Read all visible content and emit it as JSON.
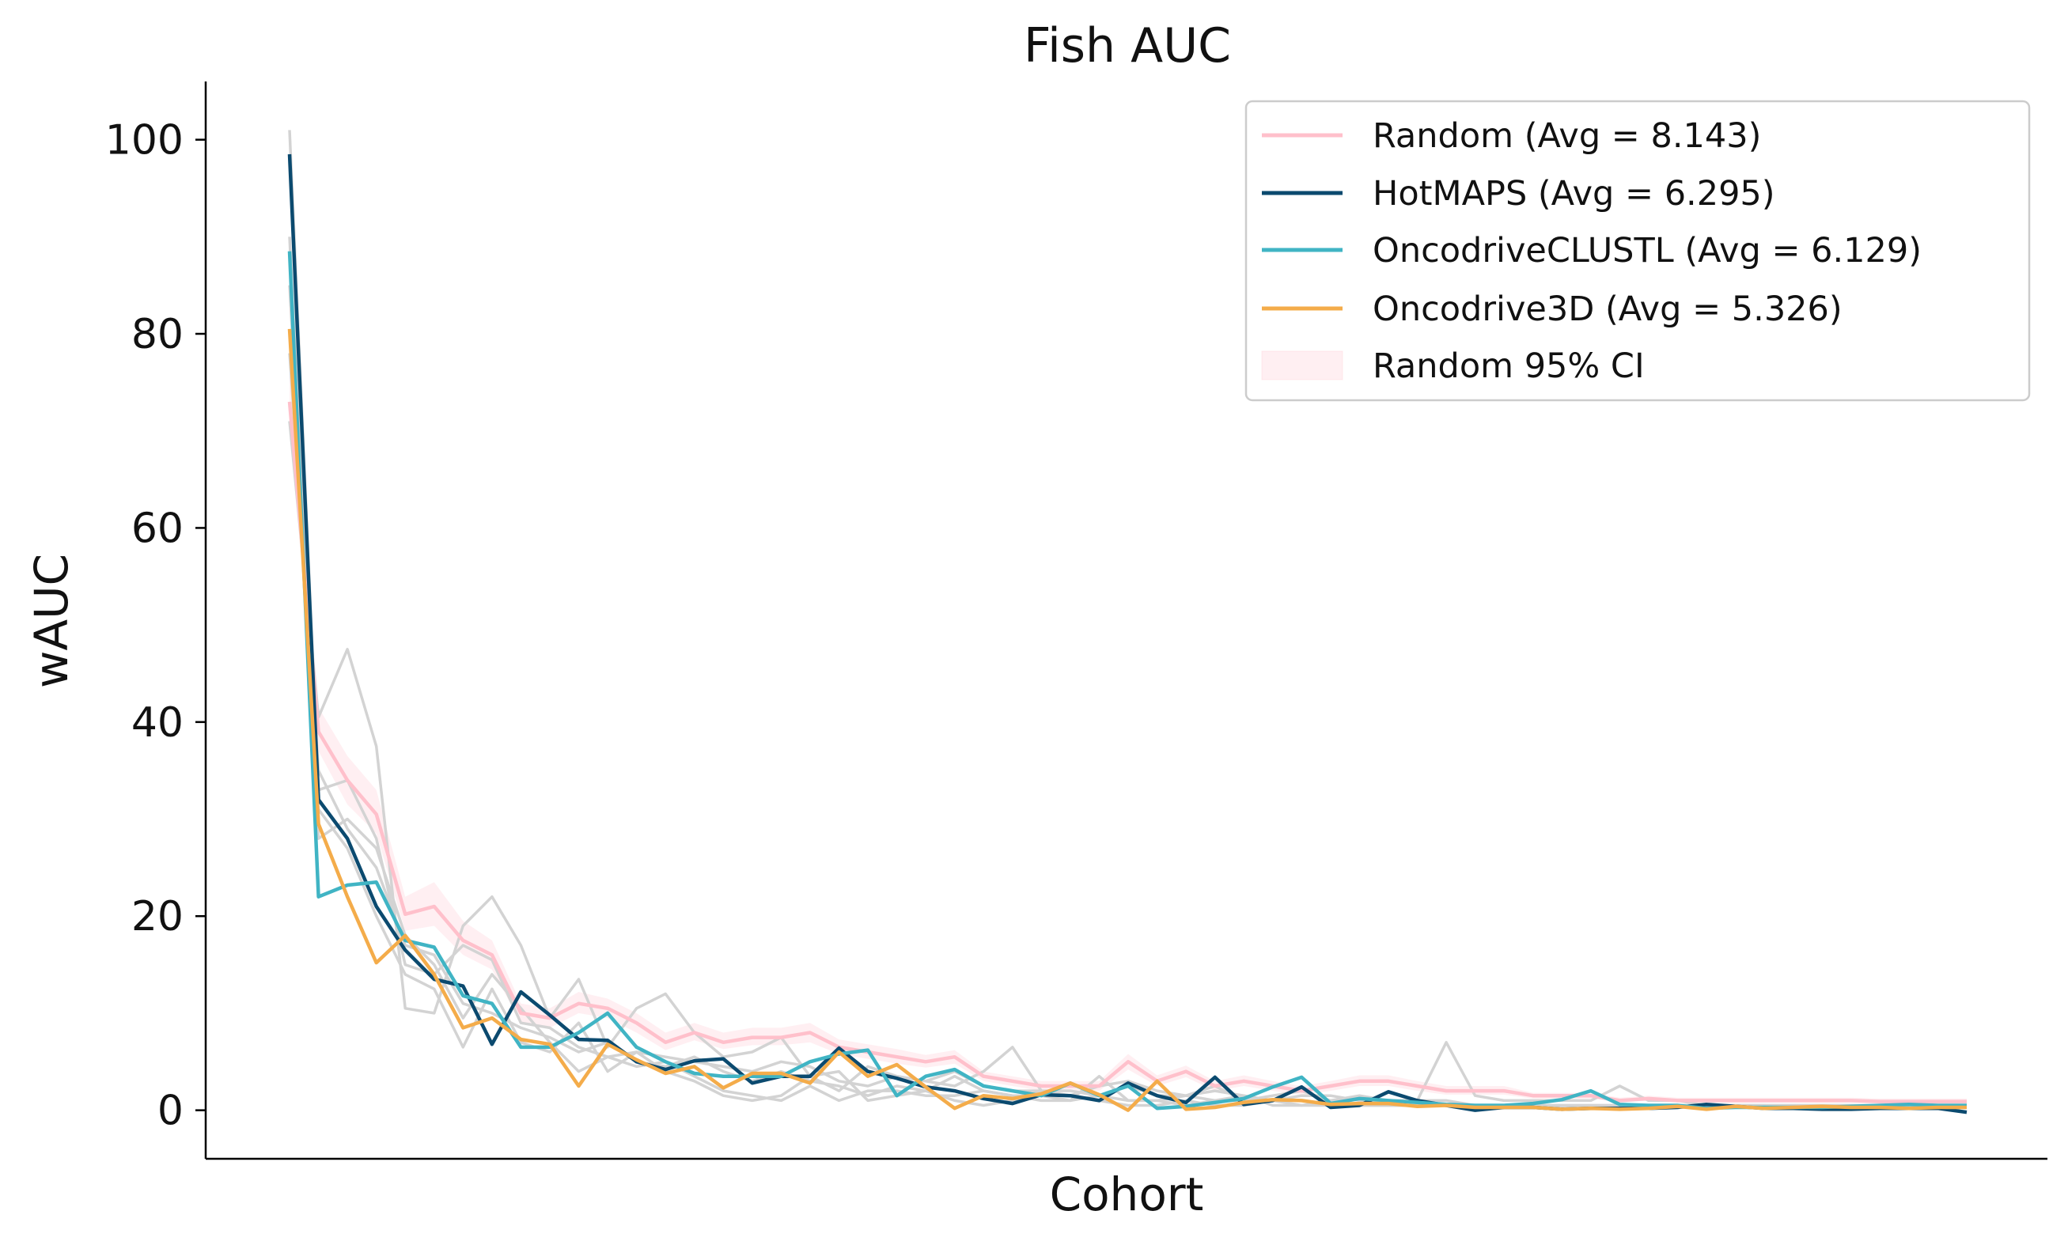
{
  "chart_data": {
    "type": "line",
    "title": "Fish AUC",
    "xlabel": "Cohort",
    "ylabel": "wAUC",
    "ylim": [
      -5,
      106
    ],
    "yticks": [
      0,
      20,
      40,
      60,
      80,
      100
    ],
    "grid": false,
    "legend_position": "top-right",
    "n_cohorts": 59,
    "series": [
      {
        "name": "Random (Avg = 8.143)",
        "color": "#ffc0cb",
        "values": [
          73.0,
          39.0,
          34.0,
          30.5,
          20.2,
          21.0,
          17.5,
          16.0,
          10.0,
          9.5,
          11.0,
          10.5,
          9.0,
          7.0,
          8.0,
          7.0,
          7.5,
          7.5,
          8.0,
          6.5,
          6.0,
          5.5,
          5.0,
          5.5,
          3.5,
          3.0,
          2.5,
          2.5,
          2.5,
          5.0,
          3.0,
          4.0,
          2.5,
          3.0,
          2.5,
          2.0,
          2.5,
          3.0,
          3.0,
          2.5,
          2.0,
          2.0,
          2.0,
          1.5,
          1.5,
          1.5,
          1.0,
          1.2,
          1.0,
          1.0,
          1.0,
          1.0,
          1.0,
          1.0,
          1.0,
          0.9,
          0.9,
          0.9,
          0.9
        ]
      },
      {
        "name": "HotMAPS (Avg = 6.295)",
        "color": "#0b4a6f",
        "values": [
          98.5,
          32.0,
          28.0,
          21.0,
          16.5,
          13.5,
          12.8,
          6.8,
          12.2,
          9.8,
          7.3,
          7.2,
          5.0,
          4.2,
          5.1,
          5.3,
          2.8,
          3.5,
          3.5,
          6.4,
          4.0,
          3.3,
          2.4,
          2.0,
          1.2,
          0.7,
          1.6,
          1.5,
          1.0,
          2.8,
          1.5,
          0.8,
          3.4,
          0.6,
          1.0,
          2.4,
          0.3,
          0.5,
          1.9,
          1.0,
          0.5,
          0.0,
          0.3,
          0.3,
          0.1,
          0.2,
          0.2,
          0.2,
          0.3,
          0.6,
          0.4,
          0.2,
          0.2,
          0.1,
          0.1,
          0.2,
          0.2,
          0.2,
          -0.2
        ]
      },
      {
        "name": "OncodriveCLUSTL (Avg = 6.129)",
        "color": "#40b4c4",
        "values": [
          88.5,
          22.0,
          23.2,
          23.5,
          17.5,
          16.8,
          11.8,
          11.0,
          6.5,
          6.5,
          8.0,
          10.0,
          6.5,
          5.0,
          3.8,
          3.5,
          3.5,
          3.5,
          5.0,
          5.8,
          6.2,
          1.5,
          3.5,
          4.2,
          2.5,
          2.0,
          1.5,
          2.8,
          1.5,
          2.5,
          0.2,
          0.4,
          0.8,
          1.2,
          2.4,
          3.4,
          0.7,
          1.2,
          1.0,
          0.8,
          0.6,
          0.5,
          0.5,
          0.7,
          1.1,
          2.0,
          0.6,
          0.5,
          0.5,
          0.2,
          0.3,
          0.3,
          0.3,
          0.3,
          0.4,
          0.5,
          0.6,
          0.5,
          0.5
        ]
      },
      {
        "name": "Oncodrive3D (Avg = 5.326)",
        "color": "#f4ac4a",
        "values": [
          80.5,
          29.5,
          22.0,
          15.2,
          18.0,
          14.0,
          8.5,
          9.5,
          7.3,
          6.8,
          2.5,
          6.8,
          5.2,
          3.8,
          4.5,
          2.3,
          3.8,
          3.8,
          2.8,
          6.0,
          3.5,
          4.7,
          2.4,
          0.2,
          1.5,
          1.2,
          1.7,
          2.8,
          1.6,
          0.0,
          3.0,
          0.1,
          0.3,
          0.8,
          1.1,
          1.0,
          0.6,
          0.7,
          0.7,
          0.4,
          0.5,
          0.3,
          0.3,
          0.3,
          0.1,
          0.2,
          0.1,
          0.2,
          0.4,
          0.1,
          0.4,
          0.2,
          0.3,
          0.4,
          0.3,
          0.3,
          0.2,
          0.3,
          0.3
        ]
      }
    ],
    "ci_band": {
      "name": "Random 95% CI",
      "color": "#ffc0cb",
      "lower": [
        70.0,
        37.0,
        31.5,
        28.5,
        18.5,
        19.0,
        16.0,
        14.5,
        9.0,
        8.5,
        10.0,
        9.5,
        8.0,
        6.2,
        7.2,
        6.3,
        6.7,
        6.7,
        7.0,
        5.8,
        5.3,
        4.8,
        4.4,
        4.8,
        3.0,
        2.5,
        2.0,
        2.0,
        2.0,
        4.2,
        2.5,
        3.4,
        2.0,
        2.5,
        2.0,
        1.6,
        2.0,
        2.5,
        2.5,
        2.0,
        1.6,
        1.6,
        1.6,
        1.2,
        1.2,
        1.2,
        0.8,
        1.0,
        0.8,
        0.8,
        0.8,
        0.8,
        0.8,
        0.8,
        0.8,
        0.7,
        0.7,
        0.7,
        0.7
      ],
      "upper": [
        76.0,
        41.5,
        36.5,
        33.0,
        22.0,
        23.5,
        19.5,
        17.5,
        11.0,
        10.5,
        12.2,
        11.5,
        10.0,
        8.0,
        9.0,
        8.0,
        8.5,
        8.5,
        9.0,
        7.3,
        6.8,
        6.3,
        5.7,
        6.2,
        4.0,
        3.5,
        3.0,
        3.0,
        3.0,
        5.8,
        3.6,
        4.6,
        3.0,
        3.6,
        3.0,
        2.5,
        3.0,
        3.6,
        3.6,
        3.0,
        2.5,
        2.5,
        2.5,
        1.8,
        1.8,
        1.8,
        1.3,
        1.5,
        1.3,
        1.3,
        1.3,
        1.3,
        1.3,
        1.3,
        1.3,
        1.2,
        1.2,
        1.2,
        1.2
      ]
    },
    "background_lines": {
      "color": "#d3d3d3",
      "lines": [
        [
          101.0,
          33.0,
          34.0,
          28.0,
          15.0,
          14.0,
          17.0,
          15.5,
          9.0,
          8.5,
          6.5,
          5.5,
          6.0,
          5.5,
          5.0,
          4.5,
          4.0,
          5.0,
          4.5,
          3.0,
          2.5,
          3.5,
          3.0,
          4.0,
          2.5,
          2.0,
          2.0,
          2.0,
          1.5,
          2.5,
          1.5,
          1.5,
          2.0,
          1.5,
          1.0,
          1.5,
          1.5,
          1.0,
          1.0,
          1.0,
          1.0,
          0.5,
          0.5,
          0.5,
          0.5,
          0.5,
          0.5,
          0.5,
          0.5,
          0.5,
          0.5,
          0.5,
          0.3,
          0.3,
          0.3,
          0.3,
          0.3,
          0.3,
          0.3
        ],
        [
          71.0,
          40.5,
          47.5,
          37.5,
          10.5,
          10.0,
          19.0,
          22.0,
          17.0,
          9.5,
          13.5,
          6.5,
          10.5,
          12.0,
          8.0,
          5.5,
          6.0,
          7.5,
          3.5,
          2.0,
          4.5,
          3.5,
          3.0,
          2.5,
          4.0,
          6.5,
          2.0,
          1.5,
          2.5,
          3.0,
          2.0,
          1.5,
          2.5,
          1.0,
          1.5,
          2.0,
          1.0,
          1.5,
          1.0,
          1.0,
          7.0,
          1.5,
          1.0,
          1.0,
          1.0,
          1.0,
          2.5,
          1.0,
          1.0,
          0.5,
          0.5,
          0.5,
          0.5,
          0.5,
          0.5,
          0.5,
          0.5,
          0.5,
          0.5
        ],
        [
          90.0,
          28.0,
          30.0,
          27.0,
          18.0,
          15.0,
          9.5,
          14.0,
          10.5,
          7.0,
          4.0,
          5.5,
          4.5,
          5.0,
          3.5,
          2.0,
          1.5,
          1.0,
          2.5,
          1.0,
          2.0,
          2.0,
          1.5,
          1.5,
          2.0,
          1.5,
          1.0,
          1.0,
          3.5,
          1.0,
          1.0,
          0.5,
          1.0,
          1.5,
          0.5,
          0.5,
          1.0,
          0.5,
          0.5,
          0.5,
          0.5,
          0.5,
          0.5,
          0.3,
          0.3,
          0.3,
          0.3,
          0.3,
          0.3,
          0.3,
          0.3,
          0.3,
          0.3,
          0.3,
          0.3,
          0.3,
          0.3,
          0.3,
          0.3
        ],
        [
          85.0,
          31.0,
          27.0,
          20.0,
          14.0,
          12.5,
          6.5,
          12.5,
          7.0,
          6.0,
          9.0,
          4.0,
          6.0,
          4.0,
          3.0,
          1.5,
          1.0,
          1.5,
          3.5,
          4.0,
          1.0,
          1.5,
          2.0,
          1.0,
          0.5,
          1.0,
          2.0,
          1.5,
          1.0,
          0.5,
          0.5,
          1.0,
          0.5,
          0.5,
          1.0,
          0.5,
          0.5,
          0.5,
          0.5,
          0.5,
          0.5,
          0.3,
          0.3,
          0.3,
          0.3,
          0.3,
          0.3,
          0.3,
          0.3,
          0.3,
          0.3,
          0.3,
          0.3,
          0.3,
          0.3,
          0.3,
          0.3,
          0.3,
          0.3
        ],
        [
          78.0,
          35.0,
          29.0,
          25.0,
          17.0,
          16.0,
          11.0,
          10.0,
          8.5,
          7.5,
          6.0,
          7.0,
          5.0,
          4.5,
          5.5,
          4.0,
          3.0,
          4.0,
          3.0,
          2.5,
          1.5,
          2.5,
          2.0,
          3.5,
          2.0,
          1.5,
          1.5,
          1.0,
          1.5,
          1.0,
          1.0,
          1.5,
          1.0,
          1.0,
          1.0,
          1.0,
          0.5,
          0.5,
          0.5,
          0.5,
          0.5,
          0.5,
          0.5,
          0.5,
          0.5,
          0.5,
          0.5,
          0.5,
          0.5,
          0.5,
          0.5,
          0.5,
          0.5,
          0.5,
          0.5,
          0.5,
          0.5,
          0.5,
          0.5
        ]
      ]
    }
  }
}
